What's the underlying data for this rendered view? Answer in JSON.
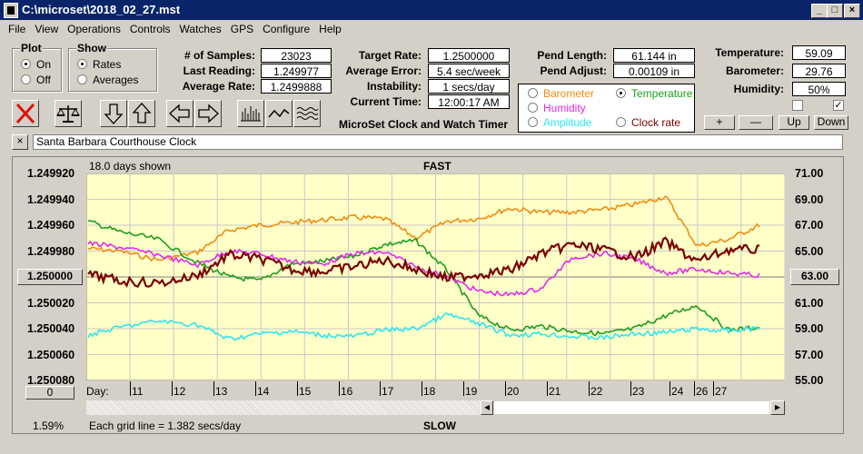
{
  "window": {
    "title": "C:\\microset\\2018_02_27.mst"
  },
  "menu": [
    "File",
    "View",
    "Operations",
    "Controls",
    "Watches",
    "GPS",
    "Configure",
    "Help"
  ],
  "plot": {
    "title": "Plot",
    "options": [
      "On",
      "Off"
    ],
    "selected": "On"
  },
  "show": {
    "title": "Show",
    "options": [
      "Rates",
      "Averages"
    ],
    "selected": "Rates"
  },
  "stats": [
    {
      "label": "# of Samples:",
      "value": "23023"
    },
    {
      "label": "Last Reading:",
      "value": "1.249977"
    },
    {
      "label": "Average Rate:",
      "value": "1.2499888"
    }
  ],
  "rates": [
    {
      "label": "Target Rate:",
      "value": "1.2500000"
    },
    {
      "label": "Average Error:",
      "value": "5.4 sec/week"
    },
    {
      "label": "Instability:",
      "value": "1 secs/day"
    },
    {
      "label": "Current Time:",
      "value": "12:00:17 AM"
    }
  ],
  "pendulum": [
    {
      "label": "Pend Length:",
      "value": "61.144 in"
    },
    {
      "label": "Pend Adjust:",
      "value": "0.00109 in"
    }
  ],
  "environment": [
    {
      "label": "Temperature:",
      "value": "59.09"
    },
    {
      "label": "Barometer:",
      "value": "29.76"
    },
    {
      "label": "Humidity:",
      "value": "50%"
    }
  ],
  "env_checks": [
    {
      "checked": false
    },
    {
      "checked": true
    }
  ],
  "env_buttons": [
    "+",
    "—",
    "Up",
    "Down"
  ],
  "product_name": "MicroSet Clock and Watch Timer",
  "legend": {
    "items": [
      {
        "label": "Barometer",
        "color": "#f08c14",
        "selected": false
      },
      {
        "label": "Temperature",
        "color": "#1e9e1e",
        "selected": true
      },
      {
        "label": "Humidity",
        "color": "#e628e6",
        "selected": false
      },
      {
        "label": "Clock rate",
        "color": "#7a0000",
        "selected": false
      },
      {
        "label": "Amplitude",
        "color": "#2ce6f0",
        "selected": false
      }
    ]
  },
  "clock_name": "Santa Barbara Courthouse Clock",
  "chart": {
    "days_shown": "18.0 days shown",
    "top_label": "FAST",
    "bottom_label": "SLOW",
    "grid_note": "Each grid line = 1.382 secs/day",
    "left_ticks": [
      "1.249920",
      "1.249940",
      "1.249960",
      "1.249980",
      "1.250000",
      "1.250020",
      "1.250040",
      "1.250060",
      "1.250080"
    ],
    "right_ticks": [
      "71.00",
      "69.00",
      "67.00",
      "65.00",
      "63.00",
      "61.00",
      "59.00",
      "57.00",
      "55.00"
    ],
    "target_button": "1.250000",
    "right_marker_button": "63.00",
    "zero_button": "0",
    "percent": "1.59%",
    "day_label": "Day:",
    "days": [
      "11",
      "12",
      "13",
      "14",
      "15",
      "16",
      "17",
      "18",
      "19",
      "20",
      "21",
      "22",
      "23",
      "24",
      "26",
      "27"
    ],
    "background": "#ffffc8"
  },
  "chart_data": {
    "type": "line",
    "x_label": "Day:",
    "left_axis": {
      "range": [
        1.25008,
        1.24992
      ],
      "ticks": [
        "1.249920",
        "1.249940",
        "1.249960",
        "1.249980",
        "1.250000",
        "1.250020",
        "1.250040",
        "1.250060",
        "1.250080"
      ]
    },
    "right_axis": {
      "range": [
        55,
        71
      ],
      "ticks": [
        "71.00",
        "69.00",
        "67.00",
        "65.00",
        "63.00",
        "61.00",
        "59.00",
        "57.00",
        "55.00"
      ]
    },
    "x": [
      10.2,
      11,
      12,
      13,
      13.8,
      14.6,
      15.4,
      16.2,
      17,
      17.8,
      18.6,
      19.4,
      20.2,
      21,
      21.8,
      22.6,
      23.4,
      24.2,
      25,
      25.8,
      26.6,
      27.4
    ],
    "series": [
      {
        "name": "Barometer",
        "color": "#f08c14",
        "axis": "right",
        "values": [
          65.2,
          65.0,
          64.3,
          64.9,
          66.6,
          67.0,
          67.2,
          67.4,
          67.6,
          67.5,
          66.0,
          67.3,
          67.5,
          68.3,
          68.0,
          68.0,
          68.2,
          68.6,
          69.2,
          65.4,
          65.9,
          67.0
        ]
      },
      {
        "name": "Temperature",
        "color": "#1e9e1e",
        "axis": "right",
        "values": [
          67.3,
          66.5,
          65.9,
          64.1,
          63.0,
          62.7,
          64.0,
          64.2,
          64.6,
          65.5,
          65.8,
          63.5,
          60.0,
          58.9,
          59.2,
          58.8,
          58.6,
          59.0,
          60.0,
          60.8,
          58.9,
          59.1
        ]
      },
      {
        "name": "Humidity",
        "color": "#e628e6",
        "axis": "right",
        "values": [
          65.6,
          65.3,
          64.7,
          63.9,
          65.0,
          64.8,
          64.2,
          64.0,
          64.8,
          64.9,
          63.8,
          63.0,
          61.9,
          61.6,
          62.1,
          64.5,
          64.8,
          64.4,
          63.3,
          63.6,
          63.3,
          63.1
        ]
      },
      {
        "name": "Clock rate",
        "color": "#7a0000",
        "axis": "left",
        "values": [
          1.249998,
          1.250003,
          1.250005,
          1.249999,
          1.249983,
          1.249986,
          1.249994,
          1.249996,
          1.249992,
          1.249987,
          1.249994,
          1.250001,
          1.249998,
          1.249995,
          1.249982,
          1.249975,
          1.249979,
          1.249985,
          1.249973,
          1.249988,
          1.249979,
          1.249979
        ]
      },
      {
        "name": "Amplitude",
        "color": "#2ce6f0",
        "axis": "right",
        "values": [
          58.5,
          59.1,
          59.6,
          59.3,
          58.2,
          58.6,
          58.8,
          58.5,
          58.4,
          58.9,
          59.0,
          60.1,
          59.4,
          58.5,
          58.6,
          58.4,
          58.3,
          58.6,
          58.7,
          59.0,
          58.8,
          59.1
        ]
      }
    ]
  }
}
